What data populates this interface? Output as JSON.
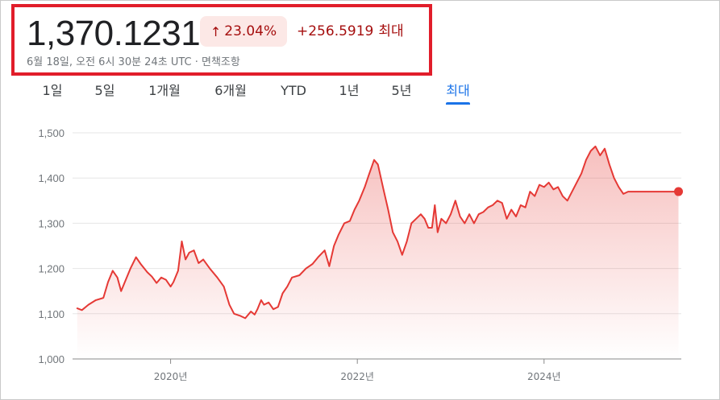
{
  "header": {
    "price": "1,370.1231",
    "change_arrow": "arrow-up-icon",
    "change_percent": "23.04%",
    "change_value": "+256.5919",
    "change_period": "최대",
    "timestamp": "6월 18일, 오전 6시 30분 24초 UTC · 면책조항",
    "change_color": "#a50e0e",
    "change_bg_color": "#fce8e6",
    "highlight_box_color": "#e11d2a"
  },
  "tabs": [
    {
      "label": "1일",
      "active": false
    },
    {
      "label": "5일",
      "active": false
    },
    {
      "label": "1개월",
      "active": false
    },
    {
      "label": "6개월",
      "active": false
    },
    {
      "label": "YTD",
      "active": false
    },
    {
      "label": "1년",
      "active": false
    },
    {
      "label": "5년",
      "active": false
    },
    {
      "label": "최대",
      "active": true
    }
  ],
  "chart_data": {
    "type": "area",
    "title": "",
    "xlabel": "",
    "ylabel": "",
    "ylim": [
      1000,
      1500
    ],
    "xlim": [
      2018.95,
      2025.47
    ],
    "y_ticks": [
      {
        "value": 1500,
        "label": "1,500"
      },
      {
        "value": 1400,
        "label": "1,400"
      },
      {
        "value": 1300,
        "label": "1,300"
      },
      {
        "value": 1200,
        "label": "1,200"
      },
      {
        "value": 1100,
        "label": "1,100"
      },
      {
        "value": 1000,
        "label": "1,000"
      }
    ],
    "x_ticks": [
      {
        "value": 2020.0,
        "label": "2020년"
      },
      {
        "value": 2022.0,
        "label": "2022년"
      },
      {
        "value": 2024.0,
        "label": "2024년"
      }
    ],
    "grid": true,
    "line_color": "#e53935",
    "fill_color": "#e53935",
    "last_point_marker": true,
    "series": [
      {
        "x": [
          2019.0,
          2019.05,
          2019.12,
          2019.2,
          2019.28,
          2019.33,
          2019.38,
          2019.43,
          2019.47,
          2019.52,
          2019.57,
          2019.63,
          2019.68,
          2019.75,
          2019.8,
          2019.85,
          2019.9,
          2019.95,
          2020.0,
          2020.03,
          2020.08,
          2020.12,
          2020.16,
          2020.2,
          2020.25,
          2020.3,
          2020.35,
          2020.42,
          2020.5,
          2020.57,
          2020.63,
          2020.68,
          2020.75,
          2020.8,
          2020.86,
          2020.9,
          2020.93,
          2020.97,
          2021.0,
          2021.05,
          2021.1,
          2021.15,
          2021.2,
          2021.25,
          2021.3,
          2021.38,
          2021.45,
          2021.52,
          2021.58,
          2021.65,
          2021.7,
          2021.75,
          2021.8,
          2021.86,
          2021.92,
          2021.97,
          2022.02,
          2022.08,
          2022.12,
          2022.18,
          2022.22,
          2022.28,
          2022.33,
          2022.38,
          2022.43,
          2022.48,
          2022.53,
          2022.58,
          2022.63,
          2022.68,
          2022.72,
          2022.76,
          2022.8,
          2022.83,
          2022.86,
          2022.9,
          2022.95,
          2023.0,
          2023.05,
          2023.1,
          2023.15,
          2023.2,
          2023.25,
          2023.3,
          2023.35,
          2023.4,
          2023.45,
          2023.5,
          2023.55,
          2023.6,
          2023.65,
          2023.7,
          2023.75,
          2023.8,
          2023.85,
          2023.9,
          2023.95,
          2024.0,
          2024.05,
          2024.1,
          2024.15,
          2024.2,
          2024.25,
          2024.3,
          2024.35,
          2024.4,
          2024.45,
          2024.5,
          2024.55,
          2024.6,
          2024.65,
          2024.7,
          2024.75,
          2024.8,
          2024.85,
          2024.9,
          2024.95,
          2025.0,
          2025.05,
          2025.1,
          2025.15,
          2025.2,
          2025.25,
          2025.3,
          2025.35,
          2025.4,
          2025.44
        ],
        "values": [
          1112,
          1108,
          1120,
          1130,
          1135,
          1170,
          1195,
          1180,
          1150,
          1175,
          1200,
          1225,
          1210,
          1192,
          1182,
          1168,
          1180,
          1175,
          1160,
          1170,
          1195,
          1260,
          1220,
          1235,
          1240,
          1212,
          1220,
          1200,
          1180,
          1160,
          1120,
          1100,
          1095,
          1090,
          1105,
          1098,
          1110,
          1130,
          1120,
          1125,
          1110,
          1115,
          1145,
          1160,
          1180,
          1185,
          1200,
          1210,
          1225,
          1240,
          1205,
          1250,
          1275,
          1300,
          1305,
          1330,
          1350,
          1380,
          1405,
          1440,
          1430,
          1375,
          1330,
          1280,
          1260,
          1230,
          1260,
          1300,
          1310,
          1320,
          1310,
          1290,
          1290,
          1340,
          1280,
          1310,
          1300,
          1320,
          1350,
          1315,
          1300,
          1320,
          1300,
          1320,
          1325,
          1335,
          1340,
          1350,
          1345,
          1310,
          1330,
          1315,
          1340,
          1335,
          1370,
          1360,
          1385,
          1380,
          1390,
          1375,
          1380,
          1360,
          1350,
          1370,
          1390,
          1410,
          1440,
          1460,
          1470,
          1450,
          1465,
          1430,
          1400,
          1380,
          1365,
          1370,
          1370,
          1370,
          1370,
          1370,
          1370,
          1370,
          1370,
          1370,
          1370,
          1370,
          1370
        ]
      }
    ]
  }
}
